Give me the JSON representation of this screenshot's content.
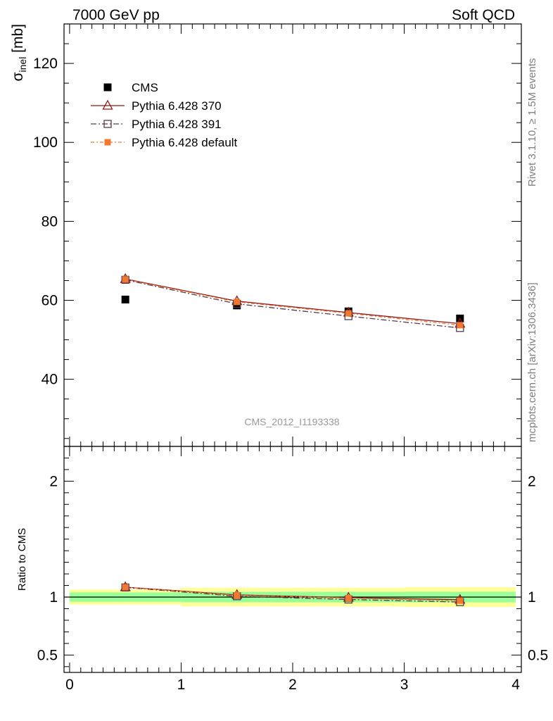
{
  "header": {
    "left": "7000 GeV pp",
    "right": "Soft QCD"
  },
  "side_labels": {
    "rivet": "Rivet 3.1.10, ≥ 1.5M events",
    "mcplots": "mcplots.cern.ch [arXiv:1306.3436]"
  },
  "analysis_id": "CMS_2012_I1193338",
  "colors": {
    "cms": "#000000",
    "pythia_370": "#8b1a1a",
    "pythia_391": "#5a3a4a",
    "pythia_default": "#f07830",
    "band_inner": "#99ff99",
    "band_outer": "#ffff99"
  },
  "chart_data": [
    {
      "type": "scatter",
      "panel": "main",
      "ylabel_main": "σ",
      "ylabel_sub": "inel",
      "ylabel_unit": " [mb]",
      "xlim": [
        -0.05,
        4.05
      ],
      "ylim": [
        23,
        130
      ],
      "yticks": [
        40,
        60,
        80,
        100,
        120
      ],
      "grid": false,
      "legend_position": "top-left",
      "x": [
        0.5,
        1.5,
        2.5,
        3.5
      ],
      "series": [
        {
          "name": "CMS",
          "style": "square",
          "values": [
            60.2,
            58.7,
            57.2,
            55.4
          ]
        },
        {
          "name": "Pythia 6.428 370",
          "style": "triangle",
          "values": [
            65.4,
            59.8,
            56.9,
            54.1
          ]
        },
        {
          "name": "Pythia 6.428 391",
          "style": "open-square",
          "values": [
            65.2,
            59.1,
            56.0,
            53.0
          ]
        },
        {
          "name": "Pythia 6.428 default",
          "style": "filled-small-square",
          "values": [
            65.3,
            59.6,
            56.7,
            53.7
          ]
        }
      ]
    },
    {
      "type": "line",
      "panel": "ratio",
      "ylabel": "Ratio to CMS",
      "xlim": [
        -0.05,
        4.05
      ],
      "ylim": [
        0.35,
        2.3
      ],
      "yticks": [
        0.5,
        1,
        2
      ],
      "ytick_labels": [
        "0.5",
        "1",
        "2"
      ],
      "xticks": [
        0,
        1,
        2,
        3,
        4
      ],
      "xtick_labels": [
        "0",
        "1",
        "2",
        "3",
        "4"
      ],
      "bands": {
        "x_edges": [
          0,
          1,
          2,
          3,
          4
        ],
        "inner": [
          [
            0.96,
            1.04
          ],
          [
            0.955,
            1.045
          ],
          [
            0.955,
            1.045
          ],
          [
            0.955,
            1.045
          ]
        ],
        "outer": [
          [
            0.935,
            1.065
          ],
          [
            0.92,
            1.08
          ],
          [
            0.92,
            1.08
          ],
          [
            0.915,
            1.085
          ]
        ]
      },
      "x": [
        0.5,
        1.5,
        2.5,
        3.5
      ],
      "series": [
        {
          "name": "Pythia 6.428 370",
          "values": [
            1.086,
            1.019,
            0.995,
            0.977
          ]
        },
        {
          "name": "Pythia 6.428 391",
          "values": [
            1.083,
            1.007,
            0.979,
            0.957
          ]
        },
        {
          "name": "Pythia 6.428 default",
          "values": [
            1.085,
            1.015,
            0.991,
            0.969
          ]
        }
      ]
    }
  ]
}
